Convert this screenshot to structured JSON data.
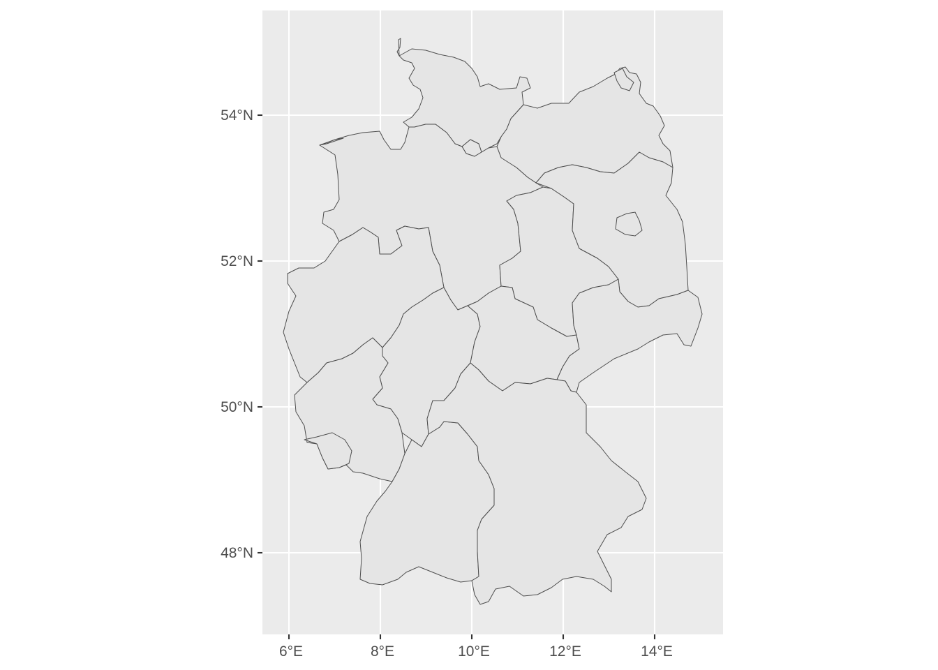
{
  "map": {
    "projection": "geographic (lon/lat)",
    "region": "Germany federal states",
    "panel_background": "#ebebeb",
    "land_fill": "#e5e5e5",
    "border_color": "#4d4d4d",
    "grid": true,
    "x_axis": {
      "range": [
        5.5,
        15.5
      ],
      "ticks": [
        6,
        8,
        10,
        12,
        14
      ],
      "tick_labels": [
        "6°E",
        "8°E",
        "10°E",
        "12°E",
        "14°E"
      ]
    },
    "y_axis": {
      "range": [
        46.9,
        55.5
      ],
      "ticks": [
        48,
        50,
        52,
        54
      ],
      "tick_labels": [
        "48°N",
        "50°N",
        "52°N",
        "54°N"
      ]
    }
  }
}
